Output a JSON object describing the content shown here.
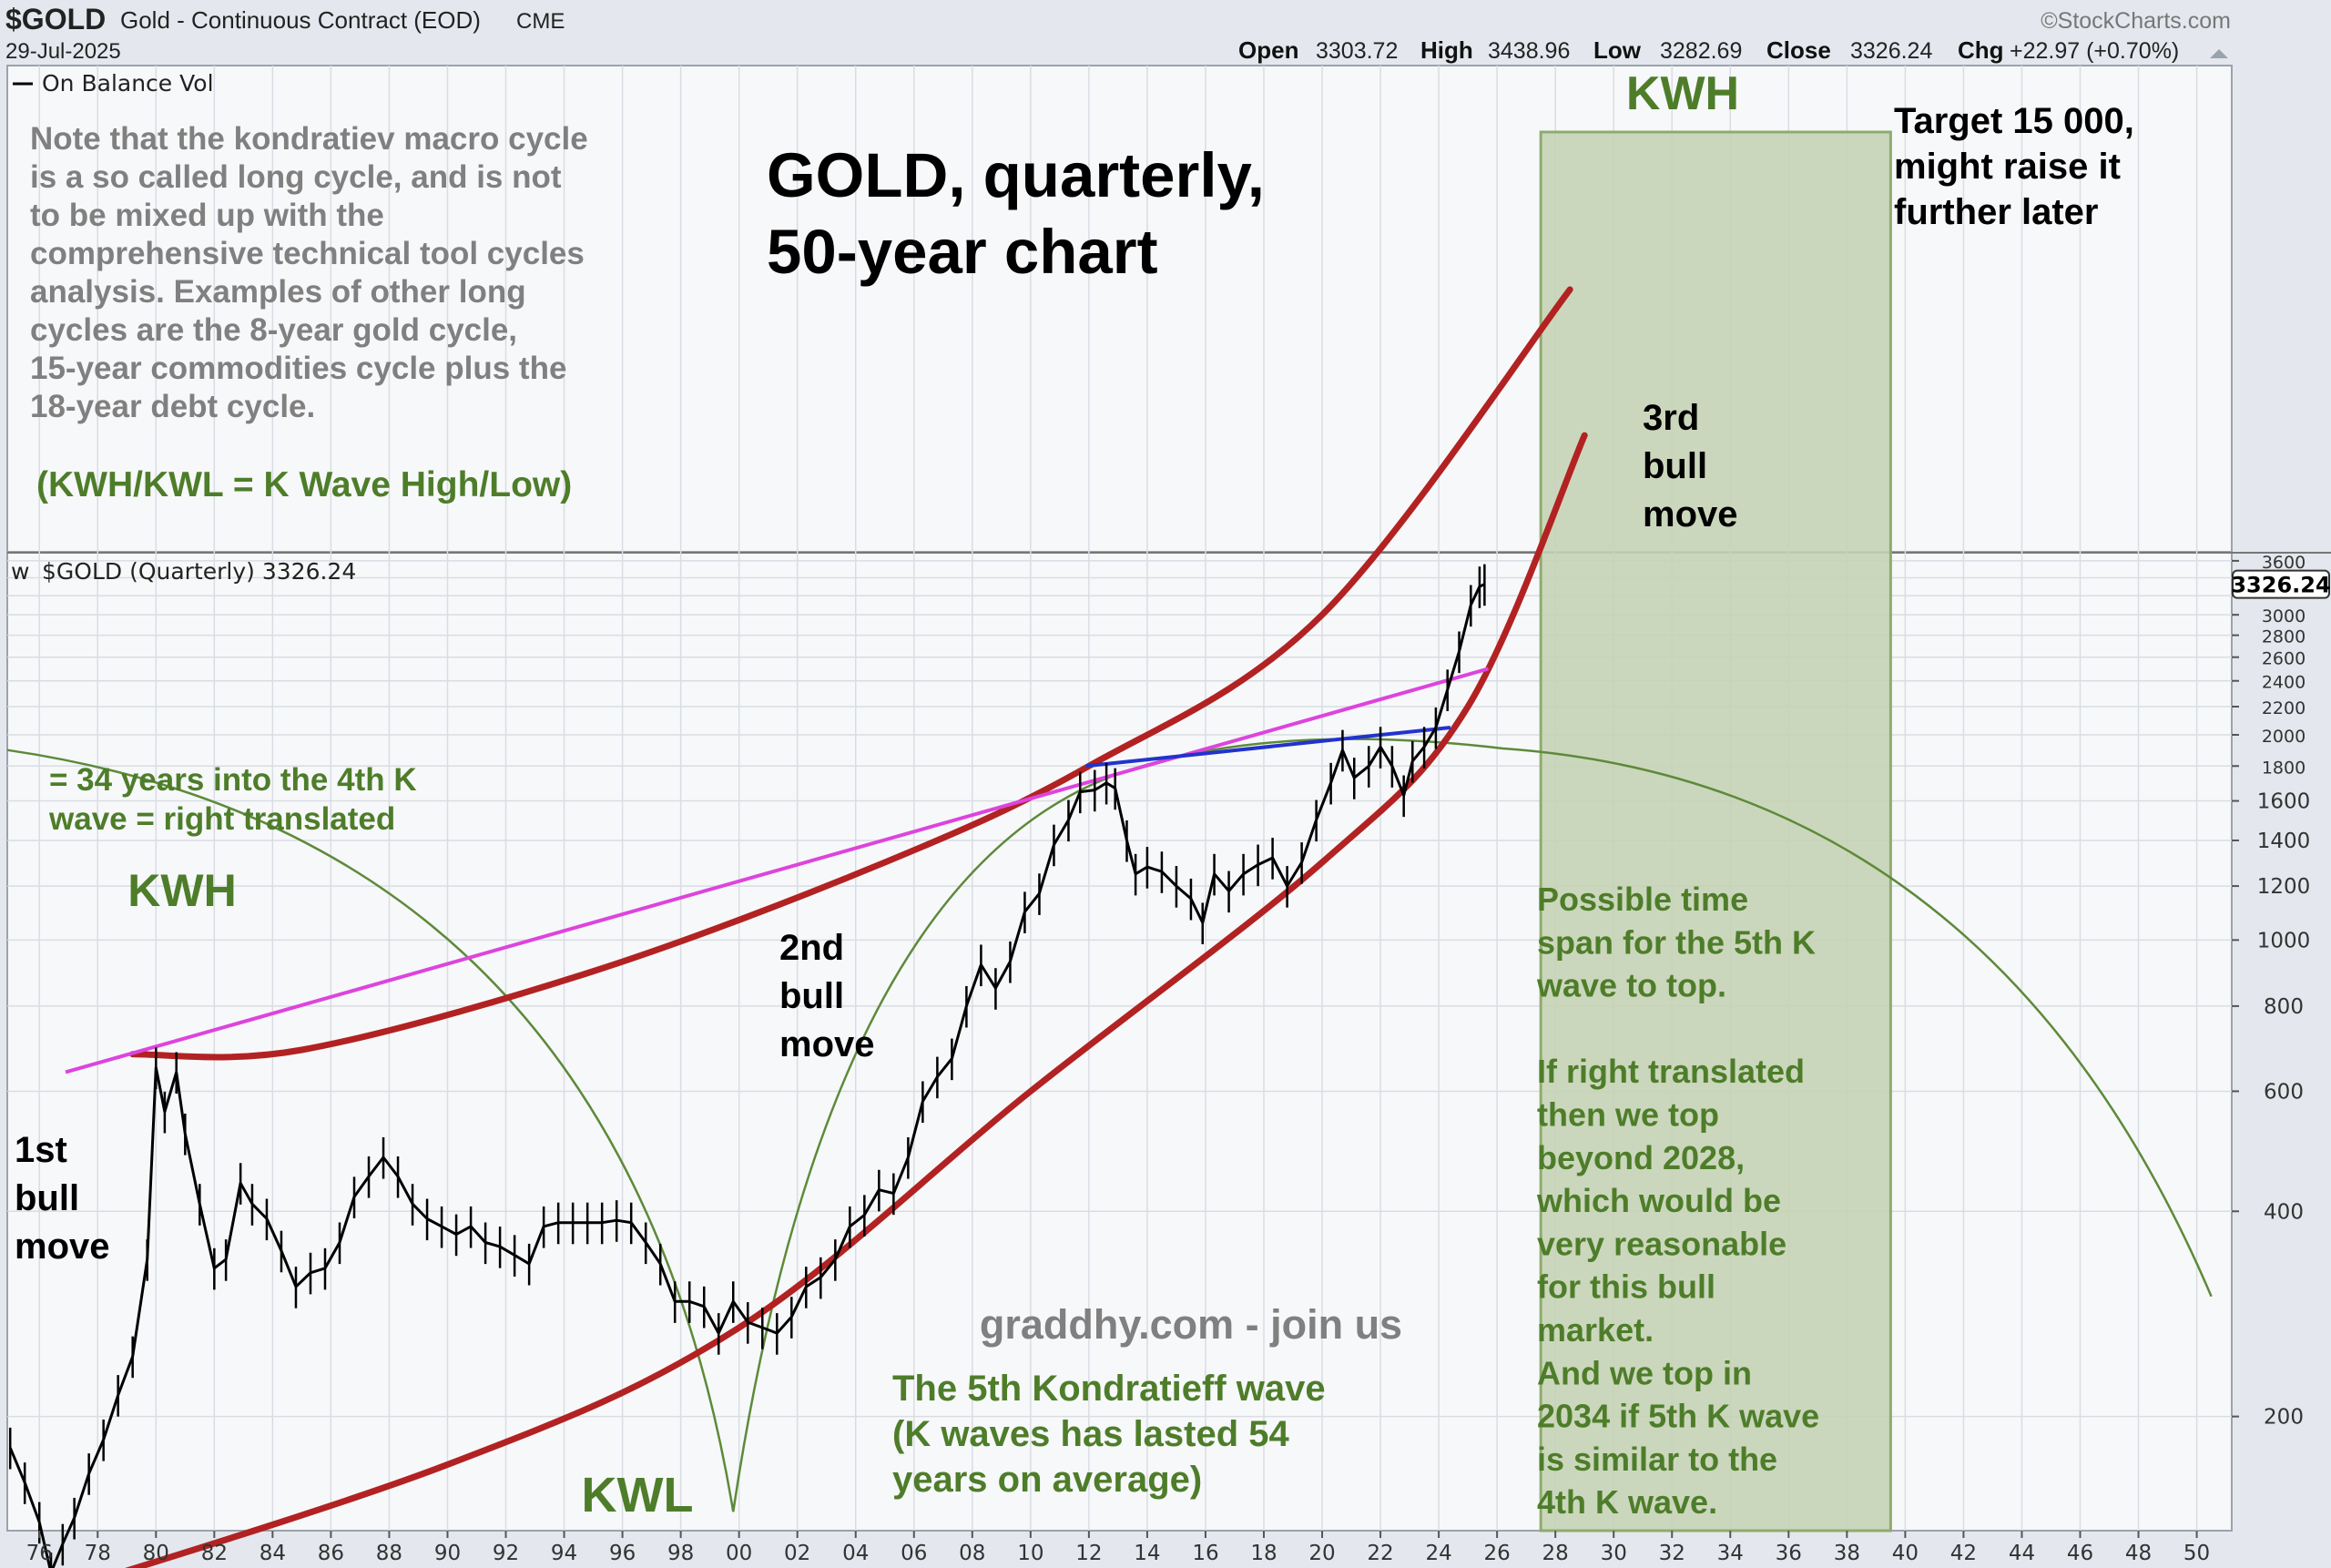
{
  "header": {
    "symbol": "$GOLD",
    "name": "Gold - Continuous Contract (EOD)",
    "exchange": "CME",
    "date": "29-Jul-2025",
    "brand": "©StockCharts.com",
    "ohlc": [
      {
        "label": "Open",
        "value": "3303.72"
      },
      {
        "label": "High",
        "value": "3438.96"
      },
      {
        "label": "Low",
        "value": "3282.69"
      },
      {
        "label": "Close",
        "value": "3326.24"
      },
      {
        "label": "Chg",
        "value": "+22.97 (+0.70%)"
      }
    ]
  },
  "upper_panel": {
    "legend": "On Balance Vol",
    "note_lines": [
      "Note that the kondratiev macro cycle",
      "is a so called long cycle, and is not",
      "to be mixed up with the",
      "comprehensive technical tool cycles",
      "analysis. Examples of other long",
      "cycles are the 8-year gold cycle,",
      "15-year commodities cycle plus the",
      "18-year debt cycle."
    ],
    "kwh_kwl_legend": "(KWH/KWL = K Wave High/Low)",
    "title_lines": [
      "GOLD, quarterly,",
      "50-year chart"
    ],
    "target_lines": [
      "Target 15 000,",
      "might raise it",
      "further later"
    ]
  },
  "main_panel": {
    "legend": "$GOLD (Quarterly) 3326.24",
    "last_value_tag": "3326.24"
  },
  "annotations": {
    "kwh_top": "KWH",
    "kwh_left": "KWH",
    "kwl": "KWL",
    "years_into_lines": [
      "= 34 years into the 4th K",
      "wave = right translated"
    ],
    "bull1_lines": [
      "1st",
      "bull",
      "move"
    ],
    "bull2_lines": [
      "2nd",
      "bull",
      "move"
    ],
    "bull3_lines": [
      "3rd",
      "bull",
      "move"
    ],
    "graddhy": "graddhy.com - join us",
    "fifth_wave_lines": [
      "The 5th Kondratieff wave",
      "(K waves has lasted 54",
      "years on average)"
    ],
    "timespan_lines": [
      "Possible time",
      "span for the 5th K",
      "wave to top.",
      "",
      "If right translated",
      "then we top",
      "beyond 2028,",
      "which would be",
      "very reasonable",
      "for this bull",
      "market.",
      "And we top in",
      "2034 if 5th K wave",
      "is similar to the",
      "4th K wave."
    ]
  },
  "colors": {
    "price": "#000000",
    "trend_red": "#b22222",
    "magenta": "#dd44dd",
    "blue": "#2233cc",
    "cycle_green": "#5d8a3a",
    "zone_fill": "#c5d3b5",
    "annotation_green": "#4e7d2a"
  },
  "chart_data": {
    "type": "line",
    "title": "GOLD, quarterly, 50-year chart",
    "series_name": "$GOLD (Quarterly)",
    "y_scale": "log",
    "y_ticks": [
      200,
      400,
      600,
      800,
      1000,
      1200,
      1400,
      1600,
      1800,
      2000,
      2200,
      2400,
      2600,
      2800,
      3000,
      3200,
      3400,
      3600
    ],
    "y_tick_labels_shown": [
      "200",
      "400",
      "600",
      "800",
      "1000",
      "1200",
      "1400",
      "1600",
      "1800",
      "2000",
      "2200",
      "2400",
      "2600",
      "2800",
      "3000",
      "3600"
    ],
    "x_tick_labels": [
      "76",
      "78",
      "80",
      "82",
      "84",
      "86",
      "88",
      "90",
      "92",
      "94",
      "96",
      "98",
      "00",
      "02",
      "04",
      "06",
      "08",
      "10",
      "12",
      "14",
      "16",
      "18",
      "20",
      "22",
      "24",
      "26",
      "28",
      "30",
      "32",
      "34",
      "36",
      "38",
      "40",
      "42",
      "44",
      "46",
      "48",
      "50"
    ],
    "x_tick_years": [
      1976,
      1978,
      1980,
      1982,
      1984,
      1986,
      1988,
      1990,
      1992,
      1994,
      1996,
      1998,
      2000,
      2002,
      2004,
      2006,
      2008,
      2010,
      2012,
      2014,
      2016,
      2018,
      2020,
      2022,
      2024,
      2026,
      2028,
      2030,
      2032,
      2034,
      2036,
      2038,
      2040,
      2042,
      2044,
      2046,
      2048,
      2050
    ],
    "x_range": [
      1974.9,
      2051.2
    ],
    "y_range": [
      136,
      3700
    ],
    "price_points": [
      [
        1975.0,
        180
      ],
      [
        1975.5,
        160
      ],
      [
        1976.0,
        140
      ],
      [
        1976.4,
        118
      ],
      [
        1976.8,
        130
      ],
      [
        1977.2,
        142
      ],
      [
        1977.7,
        165
      ],
      [
        1978.2,
        185
      ],
      [
        1978.7,
        215
      ],
      [
        1979.2,
        245
      ],
      [
        1979.7,
        340
      ],
      [
        1980.0,
        650
      ],
      [
        1980.3,
        560
      ],
      [
        1980.7,
        640
      ],
      [
        1981.0,
        520
      ],
      [
        1981.5,
        410
      ],
      [
        1982.0,
        330
      ],
      [
        1982.4,
        340
      ],
      [
        1982.9,
        440
      ],
      [
        1983.3,
        410
      ],
      [
        1983.8,
        390
      ],
      [
        1984.3,
        350
      ],
      [
        1984.8,
        310
      ],
      [
        1985.3,
        325
      ],
      [
        1985.8,
        330
      ],
      [
        1986.3,
        360
      ],
      [
        1986.8,
        420
      ],
      [
        1987.3,
        450
      ],
      [
        1987.8,
        480
      ],
      [
        1988.3,
        450
      ],
      [
        1988.8,
        410
      ],
      [
        1989.3,
        390
      ],
      [
        1989.8,
        380
      ],
      [
        1990.3,
        370
      ],
      [
        1990.8,
        380
      ],
      [
        1991.3,
        360
      ],
      [
        1991.8,
        355
      ],
      [
        1992.3,
        345
      ],
      [
        1992.8,
        335
      ],
      [
        1993.3,
        380
      ],
      [
        1993.8,
        385
      ],
      [
        1994.3,
        385
      ],
      [
        1994.8,
        385
      ],
      [
        1995.3,
        385
      ],
      [
        1995.8,
        388
      ],
      [
        1996.3,
        385
      ],
      [
        1996.8,
        360
      ],
      [
        1997.3,
        335
      ],
      [
        1997.8,
        295
      ],
      [
        1998.3,
        295
      ],
      [
        1998.8,
        290
      ],
      [
        1999.3,
        265
      ],
      [
        1999.8,
        295
      ],
      [
        2000.3,
        275
      ],
      [
        2000.8,
        270
      ],
      [
        2001.3,
        265
      ],
      [
        2001.8,
        280
      ],
      [
        2002.3,
        310
      ],
      [
        2002.8,
        320
      ],
      [
        2003.3,
        340
      ],
      [
        2003.8,
        380
      ],
      [
        2004.3,
        395
      ],
      [
        2004.8,
        430
      ],
      [
        2005.3,
        425
      ],
      [
        2005.8,
        480
      ],
      [
        2006.3,
        580
      ],
      [
        2006.8,
        630
      ],
      [
        2007.3,
        670
      ],
      [
        2007.8,
        800
      ],
      [
        2008.3,
        920
      ],
      [
        2008.8,
        850
      ],
      [
        2009.3,
        930
      ],
      [
        2009.8,
        1100
      ],
      [
        2010.3,
        1170
      ],
      [
        2010.8,
        1380
      ],
      [
        2011.3,
        1500
      ],
      [
        2011.7,
        1650
      ],
      [
        2012.2,
        1660
      ],
      [
        2012.6,
        1700
      ],
      [
        2012.9,
        1670
      ],
      [
        2013.3,
        1400
      ],
      [
        2013.6,
        1250
      ],
      [
        2014.0,
        1280
      ],
      [
        2014.5,
        1260
      ],
      [
        2015.0,
        1200
      ],
      [
        2015.5,
        1150
      ],
      [
        2015.9,
        1060
      ],
      [
        2016.3,
        1250
      ],
      [
        2016.8,
        1180
      ],
      [
        2017.3,
        1250
      ],
      [
        2017.8,
        1290
      ],
      [
        2018.3,
        1320
      ],
      [
        2018.8,
        1200
      ],
      [
        2019.3,
        1300
      ],
      [
        2019.8,
        1500
      ],
      [
        2020.3,
        1700
      ],
      [
        2020.7,
        1900
      ],
      [
        2021.1,
        1730
      ],
      [
        2021.6,
        1800
      ],
      [
        2022.0,
        1920
      ],
      [
        2022.4,
        1800
      ],
      [
        2022.8,
        1630
      ],
      [
        2023.1,
        1830
      ],
      [
        2023.5,
        1920
      ],
      [
        2023.9,
        2050
      ],
      [
        2024.3,
        2330
      ],
      [
        2024.7,
        2650
      ],
      [
        2025.1,
        3100
      ],
      [
        2025.4,
        3300
      ],
      [
        2025.57,
        3326.24
      ]
    ],
    "overlays": {
      "magenta_trendline": [
        [
          1976.9,
          640
        ],
        [
          2025.7,
          2500
        ]
      ],
      "blue_trendline": [
        [
          2011.9,
          1800
        ],
        [
          2024.4,
          2050
        ]
      ],
      "red_curve_upper": [
        [
          1979.2,
          680
        ],
        [
          1985,
          690
        ],
        [
          1995,
          900
        ],
        [
          2005,
          1300
        ],
        [
          2012,
          1800
        ],
        [
          2020,
          3000
        ],
        [
          2028.5,
          9000
        ]
      ],
      "red_curve_lower": [
        [
          1975,
          105
        ],
        [
          1990,
          170
        ],
        [
          2000,
          270
        ],
        [
          2010,
          600
        ],
        [
          2020,
          1300
        ],
        [
          2025,
          2200
        ],
        [
          2029,
          5500
        ]
      ],
      "kw_zone_years": [
        2027.5,
        2039.5
      ]
    },
    "grid": true,
    "legend_position": "top-left"
  }
}
